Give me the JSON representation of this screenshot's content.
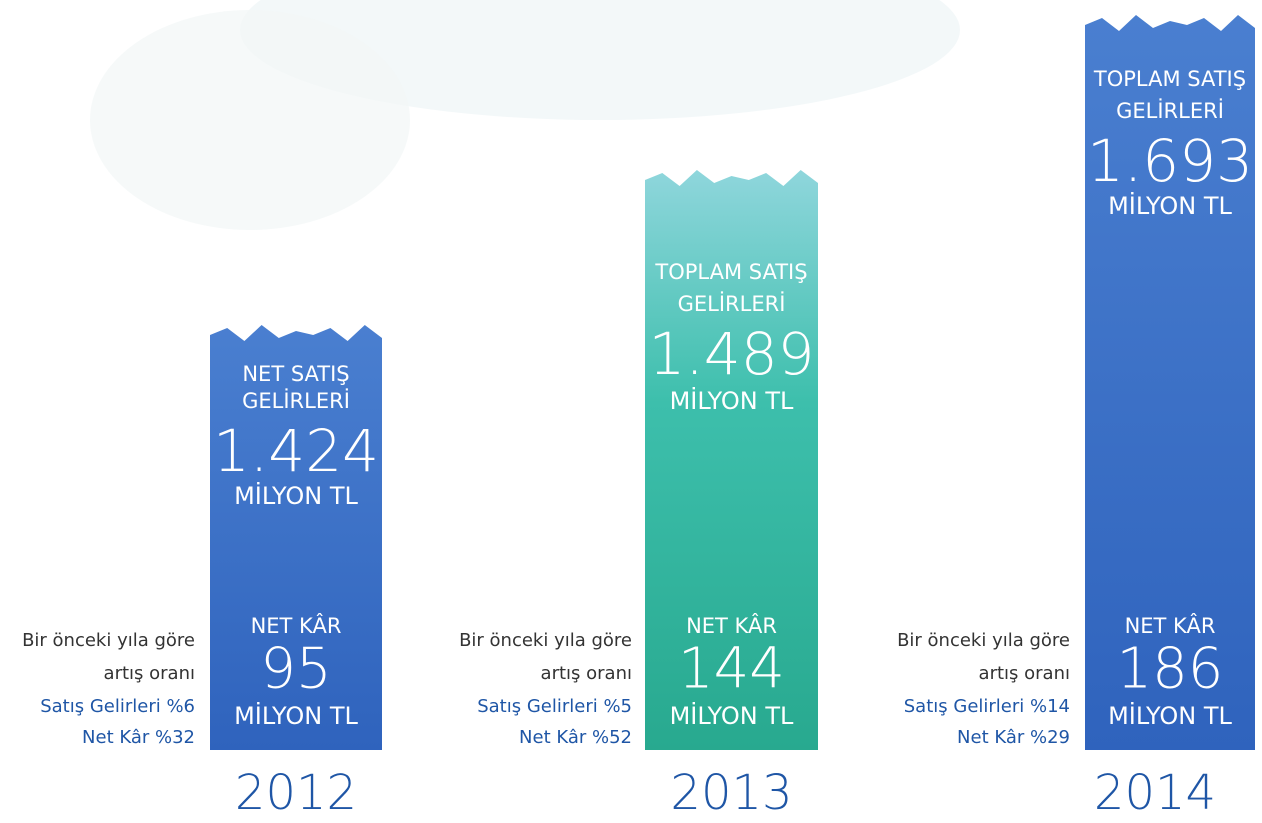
{
  "columns": [
    {
      "title_lines": [
        "NET SATIŞ",
        "GELİRLERİ"
      ],
      "sales_value": "1.424",
      "sales_unit": "MİLYON TL",
      "profit_label": "NET KÂR",
      "profit_value": "95",
      "profit_unit": "MİLYON TL",
      "note_lines": [
        "Bir önceki yıla göre",
        "artış oranı"
      ],
      "growth_lines": [
        "Satış Gelirleri %6",
        "Net Kâr %32"
      ],
      "year": "2012"
    },
    {
      "title_lines": [
        "TOPLAM SATIŞ",
        "GELİRLERİ"
      ],
      "sales_value": "1.489",
      "sales_unit": "MİLYON TL",
      "profit_label": "NET KÂR",
      "profit_value": "144",
      "profit_unit": "MİLYON TL",
      "note_lines": [
        "Bir önceki yıla göre",
        "artış oranı"
      ],
      "growth_lines": [
        "Satış Gelirleri %5",
        "Net Kâr %52"
      ],
      "year": "2013"
    },
    {
      "title_lines": [
        "TOPLAM SATIŞ",
        "GELİRLERİ"
      ],
      "sales_value": "1.693",
      "sales_unit": "MİLYON TL",
      "profit_label": "NET KÂR",
      "profit_value": "186",
      "profit_unit": "MİLYON TL",
      "note_lines": [
        "Bir önceki yıla göre",
        "artış oranı"
      ],
      "growth_lines": [
        "Satış Gelirleri %14",
        "Net Kâr %29"
      ],
      "year": "2014"
    }
  ]
}
